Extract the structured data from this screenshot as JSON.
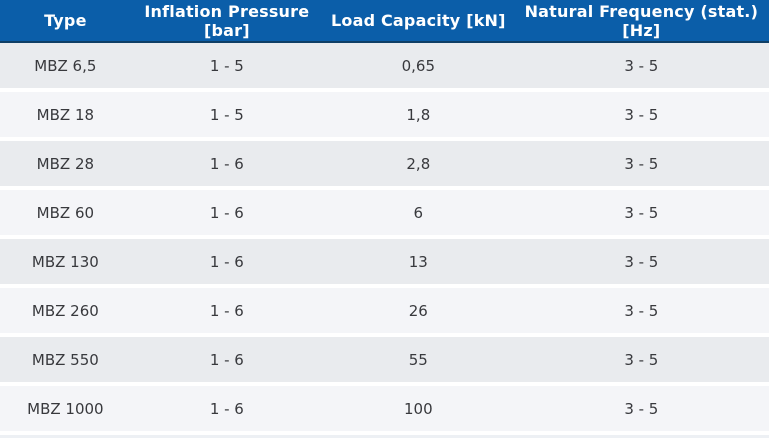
{
  "table": {
    "columns": [
      {
        "key": "type",
        "label": "Type"
      },
      {
        "key": "pressure",
        "label": "Inflation Pressure [bar]"
      },
      {
        "key": "load",
        "label": "Load Capacity [kN]"
      },
      {
        "key": "frequency",
        "label": "Natural Frequency (stat.) [Hz]"
      }
    ],
    "rows": [
      {
        "type": "MBZ 6,5",
        "pressure": "1 - 5",
        "load": "0,65",
        "frequency": "3 - 5"
      },
      {
        "type": "MBZ 18",
        "pressure": "1 - 5",
        "load": "1,8",
        "frequency": "3 - 5"
      },
      {
        "type": "MBZ 28",
        "pressure": "1 - 6",
        "load": "2,8",
        "frequency": "3 - 5"
      },
      {
        "type": "MBZ 60",
        "pressure": "1 - 6",
        "load": "6",
        "frequency": "3 - 5"
      },
      {
        "type": "MBZ 130",
        "pressure": "1 - 6",
        "load": "13",
        "frequency": "3 - 5"
      },
      {
        "type": "MBZ 260",
        "pressure": "1 - 6",
        "load": "26",
        "frequency": "3 - 5"
      },
      {
        "type": "MBZ 550",
        "pressure": "1 - 6",
        "load": "55",
        "frequency": "3 - 5"
      },
      {
        "type": "MBZ 1000",
        "pressure": "1 - 6",
        "load": "100",
        "frequency": "3 - 5"
      }
    ],
    "colors": {
      "header_bg": "#0b5ea9",
      "header_text": "#ffffff",
      "header_underline": "#0f3f66",
      "row_odd_bg": "#e9ebee",
      "row_even_bg": "#f4f5f8",
      "separator": "#ffffff",
      "body_text": "#38393d",
      "page_bg": "#edf0f4"
    }
  }
}
